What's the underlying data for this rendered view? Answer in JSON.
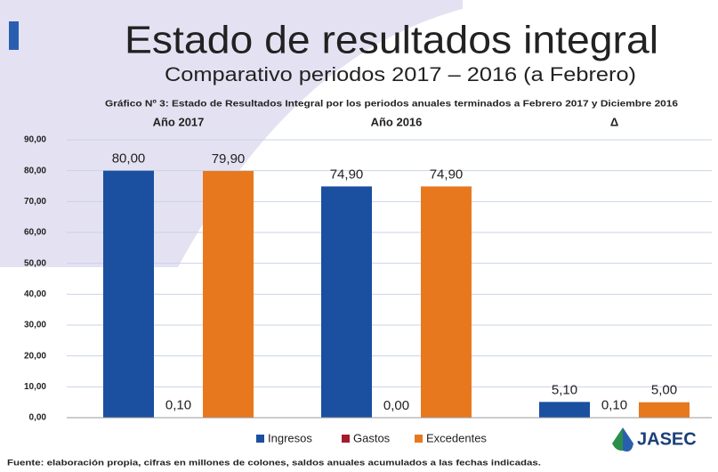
{
  "chart_data": {
    "type": "bar",
    "title": "Estado de resultados integral",
    "subtitle": "Comparativo periodos 2017 – 2016 (a Febrero)",
    "caption": "Gráfico Nº 3: Estado de Resultados Integral por los periodos anuales terminados a Febrero 2017 y Diciembre 2016",
    "categories": [
      "Año 2017",
      "Año 2016",
      "Δ"
    ],
    "series": [
      {
        "name": "Ingresos",
        "color": "#1b4fa0",
        "values": [
          80,
          74.9,
          5.1
        ],
        "value_labels": [
          "80,00",
          "74,90",
          "5,10"
        ]
      },
      {
        "name": "Gastos",
        "color": "#a31c2c",
        "values": [
          0.1,
          0,
          0.1
        ],
        "value_labels": [
          "0,10",
          "0,00",
          "0,10"
        ]
      },
      {
        "name": "Excedentes",
        "color": "#e8781e",
        "values": [
          79.9,
          74.9,
          5
        ],
        "value_labels": [
          "79,90",
          "74,90",
          "5,00"
        ]
      }
    ],
    "ylim": [
      0,
      90
    ],
    "yticks": [
      {
        "value": 0,
        "label": "0,00"
      },
      {
        "value": 10,
        "label": "10,00"
      },
      {
        "value": 20,
        "label": "20,00"
      },
      {
        "value": 30,
        "label": "30,00"
      },
      {
        "value": 40,
        "label": "40,00"
      },
      {
        "value": 50,
        "label": "50,00"
      },
      {
        "value": 60,
        "label": "60,00"
      },
      {
        "value": 70,
        "label": "70,00"
      },
      {
        "value": 80,
        "label": "80,00"
      },
      {
        "value": 90,
        "label": "90,00"
      }
    ],
    "grid": true,
    "legend": "bottom",
    "source": "Fuente: elaboración propia, cifras en millones de colones, saldos anuales acumulados a las fechas indicadas.",
    "logo": "JASEC"
  }
}
